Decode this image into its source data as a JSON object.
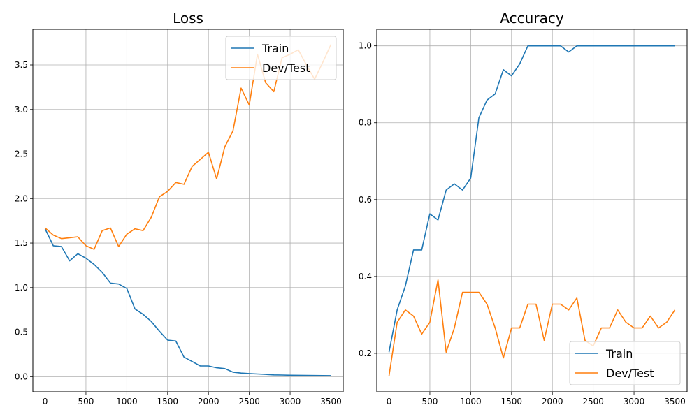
{
  "colors": {
    "train": "#1f77b4",
    "dev": "#ff7f0e",
    "grid": "#b0b0b0",
    "frame": "#000000",
    "background": "#ffffff"
  },
  "chart_data": [
    {
      "type": "line",
      "title": "Loss",
      "xlabel": "",
      "ylabel": "",
      "grid": true,
      "xlim": [
        -150,
        3650
      ],
      "ylim": [
        -0.17,
        3.9
      ],
      "xticks": [
        0,
        500,
        1000,
        1500,
        2000,
        2500,
        3000,
        3500
      ],
      "xtick_labels": [
        "0",
        "500",
        "1000",
        "1500",
        "2000",
        "2500",
        "3000",
        "3500"
      ],
      "yticks": [
        0.0,
        0.5,
        1.0,
        1.5,
        2.0,
        2.5,
        3.0,
        3.5
      ],
      "ytick_labels": [
        "0.0",
        "0.5",
        "1.0",
        "1.5",
        "2.0",
        "2.5",
        "3.0",
        "3.5"
      ],
      "legend": {
        "position": "top-right",
        "entries": [
          "Train",
          "Dev/Test"
        ]
      },
      "x": [
        0,
        100,
        200,
        300,
        400,
        500,
        600,
        700,
        800,
        900,
        1000,
        1100,
        1200,
        1300,
        1400,
        1500,
        1600,
        1700,
        1800,
        1900,
        2000,
        2100,
        2200,
        2300,
        2400,
        2500,
        2600,
        2700,
        2800,
        2900,
        3000,
        3100,
        3200,
        3300,
        3400,
        3500
      ],
      "series": [
        {
          "name": "Train",
          "color_key": "train",
          "values": [
            1.66,
            1.47,
            1.46,
            1.3,
            1.38,
            1.33,
            1.26,
            1.17,
            1.05,
            1.04,
            0.99,
            0.76,
            0.7,
            0.62,
            0.51,
            0.41,
            0.4,
            0.22,
            0.17,
            0.12,
            0.12,
            0.1,
            0.09,
            0.05,
            0.04,
            0.035,
            0.03,
            0.025,
            0.02,
            0.018,
            0.016,
            0.015,
            0.014,
            0.013,
            0.012,
            0.011
          ]
        },
        {
          "name": "Dev/Test",
          "color_key": "dev",
          "values": [
            1.67,
            1.59,
            1.55,
            1.56,
            1.57,
            1.47,
            1.43,
            1.64,
            1.67,
            1.46,
            1.6,
            1.66,
            1.64,
            1.79,
            2.02,
            2.08,
            2.18,
            2.16,
            2.36,
            2.44,
            2.52,
            2.22,
            2.58,
            2.76,
            3.24,
            3.05,
            3.62,
            3.3,
            3.2,
            3.58,
            3.62,
            3.67,
            3.5,
            3.34,
            3.53,
            3.73
          ]
        }
      ]
    },
    {
      "type": "line",
      "title": "Accuracy",
      "xlabel": "",
      "ylabel": "",
      "grid": true,
      "xlim": [
        -150,
        3650
      ],
      "ylim": [
        0.1,
        1.043
      ],
      "xticks": [
        0,
        500,
        1000,
        1500,
        2000,
        2500,
        3000,
        3500
      ],
      "xtick_labels": [
        "0",
        "500",
        "1000",
        "1500",
        "2000",
        "2500",
        "3000",
        "3500"
      ],
      "yticks": [
        0.2,
        0.4,
        0.6,
        0.8,
        1.0
      ],
      "ytick_labels": [
        "0.2",
        "0.4",
        "0.6",
        "0.8",
        "1.0"
      ],
      "legend": {
        "position": "bottom-right",
        "entries": [
          "Train",
          "Dev/Test"
        ]
      },
      "x": [
        0,
        100,
        200,
        300,
        400,
        500,
        600,
        700,
        800,
        900,
        1000,
        1100,
        1200,
        1300,
        1400,
        1500,
        1600,
        1700,
        1800,
        1900,
        2000,
        2100,
        2200,
        2300,
        2400,
        2500,
        2600,
        2700,
        2800,
        2900,
        3000,
        3100,
        3200,
        3300,
        3400,
        3500
      ],
      "series": [
        {
          "name": "Train",
          "color_key": "train",
          "values": [
            0.203,
            0.313,
            0.375,
            0.469,
            0.469,
            0.563,
            0.547,
            0.625,
            0.641,
            0.625,
            0.656,
            0.813,
            0.859,
            0.875,
            0.938,
            0.922,
            0.953,
            1.0,
            1.0,
            1.0,
            1.0,
            1.0,
            0.984,
            1.0,
            1.0,
            1.0,
            1.0,
            1.0,
            1.0,
            1.0,
            1.0,
            1.0,
            1.0,
            1.0,
            1.0,
            1.0
          ]
        },
        {
          "name": "Dev/Test",
          "color_key": "dev",
          "values": [
            0.141,
            0.281,
            0.313,
            0.297,
            0.25,
            0.281,
            0.391,
            0.203,
            0.266,
            0.359,
            0.359,
            0.359,
            0.328,
            0.266,
            0.188,
            0.266,
            0.266,
            0.328,
            0.328,
            0.234,
            0.328,
            0.328,
            0.313,
            0.344,
            0.234,
            0.219,
            0.266,
            0.266,
            0.313,
            0.281,
            0.266,
            0.266,
            0.297,
            0.266,
            0.281,
            0.313
          ]
        }
      ]
    }
  ]
}
